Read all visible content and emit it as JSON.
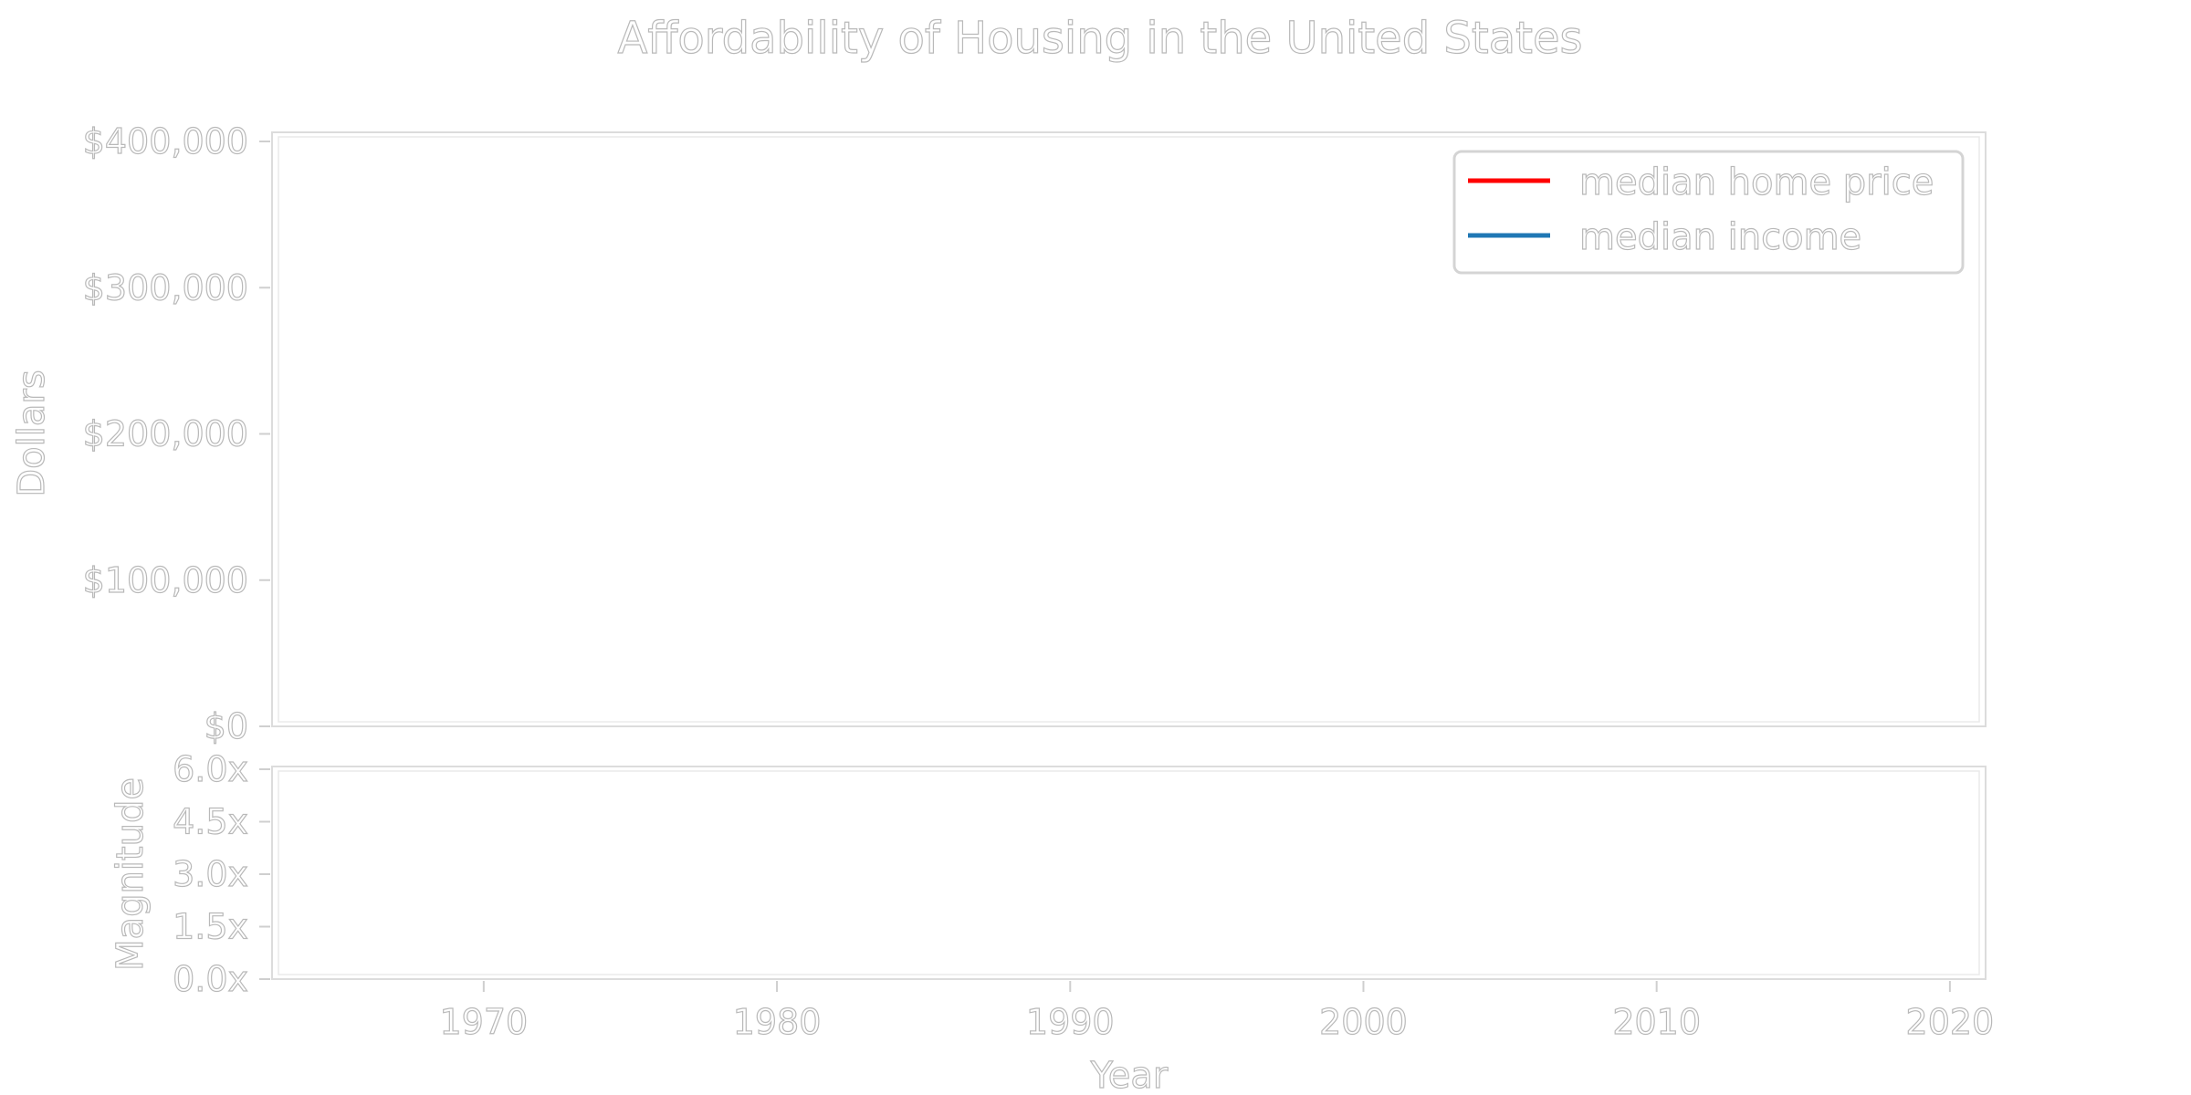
{
  "chart_data": [
    {
      "type": "line",
      "title": "Affordability of Housing in the United States",
      "xlabel": "",
      "ylabel": "Dollars",
      "xlim": [
        1963,
        2021
      ],
      "ylim": [
        0,
        400000
      ],
      "yticks": [
        {
          "value": 0,
          "label": "$0"
        },
        {
          "value": 100000,
          "label": "$100,000"
        },
        {
          "value": 200000,
          "label": "$200,000"
        },
        {
          "value": 300000,
          "label": "$300,000"
        },
        {
          "value": 400000,
          "label": "$400,000"
        }
      ],
      "grid": false,
      "legend_position": "top-right",
      "series": [
        {
          "name": "median home price",
          "color": "#ff0000",
          "x": [],
          "y": []
        },
        {
          "name": "median income",
          "color": "#1f77b4",
          "x": [],
          "y": []
        }
      ]
    },
    {
      "type": "line",
      "title": "",
      "xlabel": "Year",
      "ylabel": "Magnitude",
      "xlim": [
        1963,
        2021
      ],
      "ylim": [
        0,
        6
      ],
      "yticks": [
        {
          "value": 0,
          "label": "0.0x"
        },
        {
          "value": 1.5,
          "label": "1.5x"
        },
        {
          "value": 3,
          "label": "3.0x"
        },
        {
          "value": 4.5,
          "label": "4.5x"
        },
        {
          "value": 6,
          "label": "6.0x"
        }
      ],
      "xticks": [
        {
          "value": 1970,
          "label": "1970"
        },
        {
          "value": 1980,
          "label": "1980"
        },
        {
          "value": 1990,
          "label": "1990"
        },
        {
          "value": 2000,
          "label": "2000"
        },
        {
          "value": 2010,
          "label": "2010"
        },
        {
          "value": 2020,
          "label": "2020"
        }
      ],
      "grid": false,
      "series": []
    }
  ]
}
